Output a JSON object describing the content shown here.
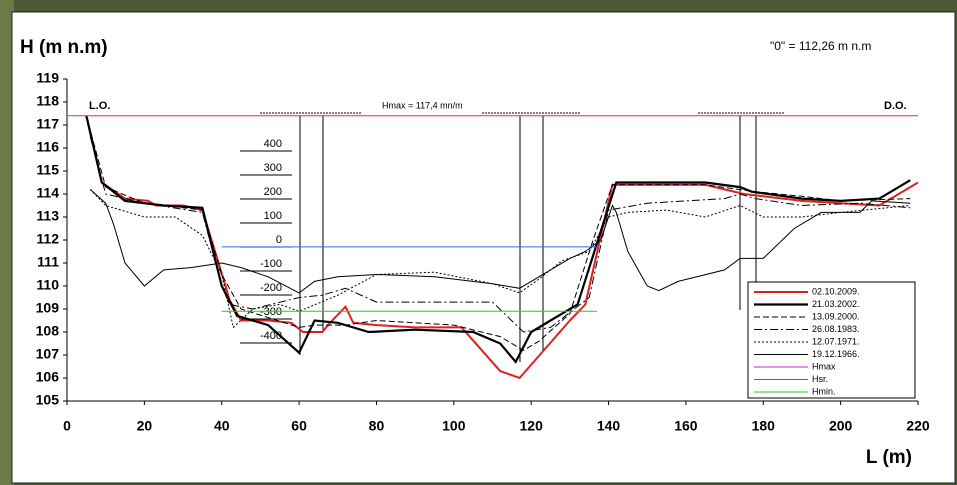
{
  "chart_data": {
    "type": "line",
    "y_label": "H (m n.m)",
    "x_label": "L (m)",
    "note": "\"0\" = 112,26 m n.m",
    "left_label": "L.O.",
    "right_label": "D.O.",
    "hmax_label": "Hmax = 117,4 mn/m",
    "xlim": [
      0,
      220
    ],
    "xticks": [
      0,
      20,
      40,
      60,
      80,
      100,
      120,
      140,
      160,
      180,
      200,
      220
    ],
    "ylim": [
      105,
      119
    ],
    "yticks": [
      105,
      106,
      107,
      108,
      109,
      110,
      111,
      112,
      113,
      114,
      115,
      116,
      117,
      118,
      119
    ],
    "velocity_ticks": [
      400,
      300,
      200,
      100,
      0,
      -100,
      -200,
      -300,
      -400
    ],
    "legend": "bottom-right",
    "series": [
      {
        "name": "02.10.2009.",
        "color": "#e02020",
        "dash": "solid",
        "width": 2,
        "x": [
          5,
          9,
          15,
          21,
          23,
          30,
          35,
          41,
          42,
          45,
          52,
          58,
          61,
          66,
          68,
          72,
          74,
          80,
          90,
          102,
          112,
          117,
          130,
          134,
          141,
          150,
          165,
          175,
          190,
          200,
          210,
          215,
          220
        ],
        "values": [
          117.4,
          114.5,
          113.8,
          113.7,
          113.5,
          113.5,
          113.3,
          110,
          109.4,
          108.5,
          108.5,
          108.4,
          108,
          108,
          108.4,
          109.1,
          108.4,
          108.3,
          108.2,
          108.2,
          106.3,
          106,
          108.5,
          109.2,
          114.4,
          114.4,
          114.4,
          114,
          113.7,
          113.6,
          113.5,
          114,
          114.5
        ]
      },
      {
        "name": "21.03.2002.",
        "color": "#000000",
        "dash": "solid",
        "width": 2.2,
        "x": [
          5,
          9,
          15,
          25,
          35,
          40,
          44,
          52,
          60,
          64,
          70,
          78,
          90,
          105,
          112,
          116,
          120,
          125,
          132,
          142,
          165,
          174,
          177,
          190,
          200,
          210,
          218
        ],
        "values": [
          117.4,
          114.5,
          113.7,
          113.5,
          113.4,
          110,
          108.7,
          108.3,
          107.1,
          108.5,
          108.4,
          108,
          108.1,
          108,
          107.5,
          106.7,
          108,
          108.5,
          109.2,
          114.5,
          114.5,
          114.3,
          114.1,
          113.8,
          113.7,
          113.8,
          114.6
        ]
      },
      {
        "name": "13.09.2000.",
        "color": "#000000",
        "dash": "dashed",
        "width": 1,
        "x": [
          5,
          10,
          20,
          35,
          40,
          45,
          60,
          64,
          72,
          80,
          100,
          112,
          118,
          122,
          130,
          136,
          141,
          165,
          178,
          190,
          200,
          218
        ],
        "values": [
          117.4,
          114.3,
          113.6,
          113.3,
          110.5,
          109,
          108.2,
          108.3,
          108.3,
          108.5,
          108.3,
          107.8,
          107.2,
          107.6,
          108.8,
          112,
          114.4,
          114.4,
          114.1,
          113.9,
          113.7,
          113.8
        ]
      },
      {
        "name": "26.08.1983.",
        "color": "#000000",
        "dash": "dashdot",
        "width": 1,
        "x": [
          6,
          10,
          20,
          35,
          40,
          42,
          48,
          60,
          66,
          72,
          80,
          100,
          110,
          118,
          125,
          135,
          140,
          150,
          160,
          170,
          174,
          178,
          190,
          205,
          218
        ],
        "values": [
          116.5,
          114,
          113.6,
          113.2,
          110,
          109.2,
          109,
          109.5,
          109.6,
          109.9,
          109.3,
          109.3,
          109.3,
          108,
          108.2,
          109.5,
          113.3,
          113.6,
          113.7,
          113.8,
          114,
          113.8,
          113.5,
          113.6,
          113.4
        ]
      },
      {
        "name": "12.07.1971.",
        "color": "#000000",
        "dash": "dotted",
        "width": 1,
        "x": [
          6,
          10,
          20,
          28,
          35,
          40,
          43,
          48,
          55,
          60,
          70,
          80,
          95,
          110,
          117,
          122,
          128,
          135,
          140,
          145,
          155,
          165,
          174,
          180,
          190,
          200,
          218
        ],
        "values": [
          114.2,
          113.5,
          113,
          113,
          112.2,
          110.5,
          108.2,
          109,
          109.2,
          108.9,
          109.6,
          110.5,
          110.6,
          110.1,
          109.7,
          110.3,
          111.1,
          111.5,
          113,
          113.2,
          113.3,
          113,
          113.5,
          113,
          113,
          113.2,
          113.5
        ]
      },
      {
        "name": "19.12.1966.",
        "color": "#000000",
        "dash": "solid",
        "width": 1,
        "x": [
          6,
          10,
          12,
          15,
          20,
          25,
          32,
          40,
          45,
          52,
          60,
          64,
          70,
          80,
          95,
          110,
          117,
          125,
          130,
          134,
          138,
          141,
          142,
          145,
          150,
          153,
          158,
          170,
          174,
          180,
          188,
          195,
          205,
          208,
          218
        ],
        "values": [
          114.2,
          113.6,
          112.7,
          111,
          110,
          110.7,
          110.8,
          111,
          110.8,
          110.4,
          109.7,
          110.2,
          110.4,
          110.5,
          110.4,
          110.1,
          109.9,
          110.7,
          111.2,
          111.5,
          112,
          113.5,
          113.2,
          111.5,
          110,
          109.8,
          110.2,
          110.7,
          111.2,
          111.2,
          112.5,
          113.2,
          113.2,
          113.7,
          113.6
        ]
      },
      {
        "name": "Hmax",
        "color": "#d020d0",
        "dash": "solid",
        "width": 1,
        "x": [
          0,
          220
        ],
        "values": [
          117.4,
          117.4
        ]
      },
      {
        "name": "Hsr.",
        "color": "#4060ff",
        "dash": "solid",
        "width": 1,
        "x": [
          40,
          137
        ],
        "values": [
          111.7,
          111.7
        ]
      },
      {
        "name": "Hmin.",
        "color": "#20d020",
        "dash": "solid",
        "width": 1,
        "x": [
          40,
          137
        ],
        "values": [
          108.9,
          108.9
        ]
      }
    ]
  }
}
